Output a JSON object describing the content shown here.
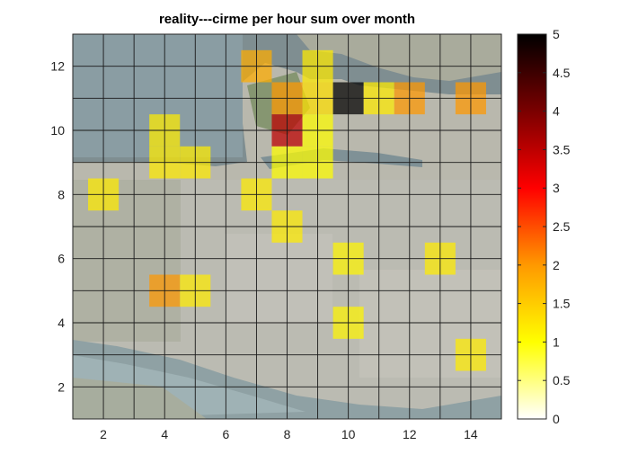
{
  "chart_data": {
    "type": "heatmap",
    "title": "reality---cirme per hour sum over month",
    "xlabel": "",
    "ylabel": "",
    "xlim": [
      1,
      15
    ],
    "ylim": [
      1,
      13
    ],
    "x_ticks": [
      2,
      4,
      6,
      8,
      10,
      12,
      14
    ],
    "y_ticks": [
      2,
      4,
      6,
      8,
      10,
      12
    ],
    "grid": "on",
    "background": "satellite-map",
    "colormap": "hot (reversed)",
    "colorbar": {
      "range": [
        0,
        5
      ],
      "ticks": [
        0,
        0.5,
        1,
        1.5,
        2,
        2.5,
        3,
        3.5,
        4,
        4.5,
        5
      ],
      "tick_labels": [
        "0",
        "0.5",
        "1",
        "1.5",
        "2",
        "2.5",
        "3",
        "3.5",
        "4",
        "4.5",
        "5"
      ]
    },
    "cell_size": 1,
    "cells": [
      {
        "x": 7,
        "y": 12,
        "value": 1.8
      },
      {
        "x": 9,
        "y": 12,
        "value": 1.2
      },
      {
        "x": 8,
        "y": 11,
        "value": 2.0
      },
      {
        "x": 9,
        "y": 11,
        "value": 1.3
      },
      {
        "x": 10,
        "y": 11,
        "value": 5.0
      },
      {
        "x": 11,
        "y": 11,
        "value": 1.2
      },
      {
        "x": 12,
        "y": 11,
        "value": 2.0
      },
      {
        "x": 14,
        "y": 11,
        "value": 2.0
      },
      {
        "x": 4,
        "y": 10,
        "value": 1.2
      },
      {
        "x": 8,
        "y": 10,
        "value": 3.5
      },
      {
        "x": 9,
        "y": 10,
        "value": 1.0
      },
      {
        "x": 4,
        "y": 9,
        "value": 1.2
      },
      {
        "x": 5,
        "y": 9,
        "value": 1.2
      },
      {
        "x": 8,
        "y": 9,
        "value": 1.0
      },
      {
        "x": 9,
        "y": 9,
        "value": 1.0
      },
      {
        "x": 2,
        "y": 8,
        "value": 1.2
      },
      {
        "x": 7,
        "y": 8,
        "value": 1.2
      },
      {
        "x": 8,
        "y": 7,
        "value": 1.2
      },
      {
        "x": 10,
        "y": 6,
        "value": 1.1
      },
      {
        "x": 13,
        "y": 6,
        "value": 1.2
      },
      {
        "x": 4,
        "y": 5,
        "value": 2.0
      },
      {
        "x": 5,
        "y": 5,
        "value": 1.2
      },
      {
        "x": 10,
        "y": 4,
        "value": 1.1
      },
      {
        "x": 14,
        "y": 3,
        "value": 1.2
      }
    ]
  }
}
